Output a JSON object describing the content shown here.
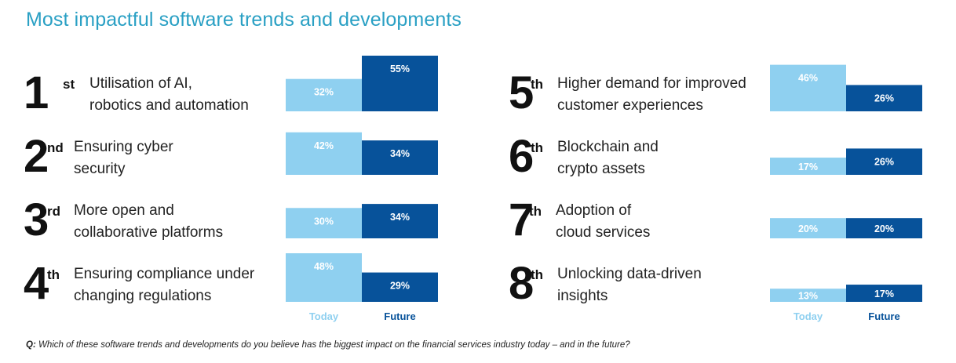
{
  "title": "Most impactful software trends and developments",
  "chart_data": {
    "type": "bar",
    "series_names": [
      "Today",
      "Future"
    ],
    "colors": {
      "today": "#8fd0f0",
      "future": "#07529a"
    },
    "ylim": [
      0,
      55
    ],
    "items": [
      {
        "rank": "1",
        "suffix": "st",
        "label": [
          "Utilisation of AI,",
          "robotics and automation"
        ],
        "today": 32,
        "future": 55,
        "today_label": "32%",
        "future_label": "55%"
      },
      {
        "rank": "2",
        "suffix": "nd",
        "label": [
          "Ensuring cyber",
          "security"
        ],
        "today": 42,
        "future": 34,
        "today_label": "42%",
        "future_label": "34%"
      },
      {
        "rank": "3",
        "suffix": "rd",
        "label": [
          "More open and",
          "collaborative platforms"
        ],
        "today": 30,
        "future": 34,
        "today_label": "30%",
        "future_label": "34%"
      },
      {
        "rank": "4",
        "suffix": "th",
        "label": [
          "Ensuring compliance under",
          "changing regulations"
        ],
        "today": 48,
        "future": 29,
        "today_label": "48%",
        "future_label": "29%"
      },
      {
        "rank": "5",
        "suffix": "th",
        "label": [
          "Higher demand for improved",
          "customer experiences"
        ],
        "today": 46,
        "future": 26,
        "today_label": "46%",
        "future_label": "26%"
      },
      {
        "rank": "6",
        "suffix": "th",
        "label": [
          "Blockchain and",
          "crypto assets"
        ],
        "today": 17,
        "future": 26,
        "today_label": "17%",
        "future_label": "26%"
      },
      {
        "rank": "7",
        "suffix": "th",
        "label": [
          "Adoption of",
          "cloud services"
        ],
        "today": 20,
        "future": 20,
        "today_label": "20%",
        "future_label": "20%"
      },
      {
        "rank": "8",
        "suffix": "th",
        "label": [
          "Unlocking data-driven",
          "insights"
        ],
        "today": 13,
        "future": 17,
        "today_label": "13%",
        "future_label": "17%"
      }
    ],
    "axis_labels": {
      "today": "Today",
      "future": "Future"
    }
  },
  "footnote": {
    "prefix": "Q:",
    "text": "Which of these software trends and developments do you believe has the biggest impact on the financial services industry today – and in the future?"
  }
}
